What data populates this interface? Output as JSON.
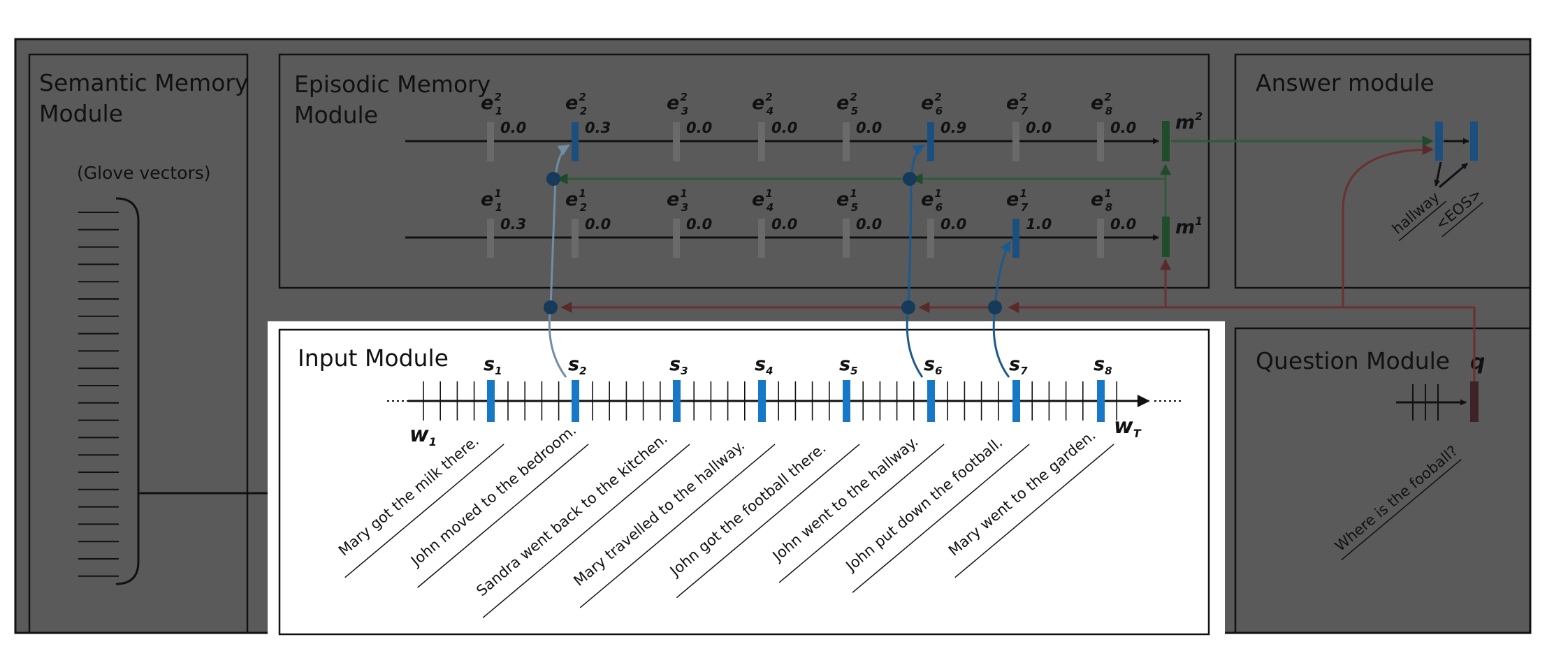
{
  "modules": {
    "semantic": {
      "title_line1": "Semantic Memory",
      "title_line2": "Module",
      "subtitle": "(Glove vectors)"
    },
    "episodic": {
      "title_line1": "Episodic Memory",
      "title_line2": "Module"
    },
    "answer": {
      "title": "Answer module",
      "outputs": [
        "hallway",
        "<EOS>"
      ]
    },
    "question": {
      "title": "Question Module",
      "q_label": "q",
      "question_text": "Where is the fooball?"
    },
    "input": {
      "title": "Input Module",
      "w_first": "w",
      "w_first_sub": "1",
      "w_last": "w",
      "w_last_sub": "T"
    }
  },
  "episodic": {
    "pass2": {
      "memory_label": "m",
      "memory_sup": "2",
      "gates": [
        {
          "sub": "1",
          "sup": "2",
          "value": "0.0",
          "attended": false
        },
        {
          "sub": "2",
          "sup": "2",
          "value": "0.3",
          "attended": true
        },
        {
          "sub": "3",
          "sup": "2",
          "value": "0.0",
          "attended": false
        },
        {
          "sub": "4",
          "sup": "2",
          "value": "0.0",
          "attended": false
        },
        {
          "sub": "5",
          "sup": "2",
          "value": "0.0",
          "attended": false
        },
        {
          "sub": "6",
          "sup": "2",
          "value": "0.9",
          "attended": true
        },
        {
          "sub": "7",
          "sup": "2",
          "value": "0.0",
          "attended": false
        },
        {
          "sub": "8",
          "sup": "2",
          "value": "0.0",
          "attended": false
        }
      ]
    },
    "pass1": {
      "memory_label": "m",
      "memory_sup": "1",
      "gates": [
        {
          "sub": "1",
          "sup": "1",
          "value": "0.3",
          "attended": false
        },
        {
          "sub": "2",
          "sup": "1",
          "value": "0.0",
          "attended": false
        },
        {
          "sub": "3",
          "sup": "1",
          "value": "0.0",
          "attended": false
        },
        {
          "sub": "4",
          "sup": "1",
          "value": "0.0",
          "attended": false
        },
        {
          "sub": "5",
          "sup": "1",
          "value": "0.0",
          "attended": false
        },
        {
          "sub": "6",
          "sup": "1",
          "value": "0.0",
          "attended": false
        },
        {
          "sub": "7",
          "sup": "1",
          "value": "1.0",
          "attended": true
        },
        {
          "sub": "8",
          "sup": "1",
          "value": "0.0",
          "attended": false
        }
      ]
    }
  },
  "input": {
    "sentences": [
      {
        "label": "s",
        "sub": "1",
        "text": "Mary got the milk there."
      },
      {
        "label": "s",
        "sub": "2",
        "text": "John moved to the bedroom."
      },
      {
        "label": "s",
        "sub": "3",
        "text": "Sandra went back to the kitchen."
      },
      {
        "label": "s",
        "sub": "4",
        "text": "Mary travelled to the hallway."
      },
      {
        "label": "s",
        "sub": "5",
        "text": "John got the football there."
      },
      {
        "label": "s",
        "sub": "6",
        "text": "John went to the hallway."
      },
      {
        "label": "s",
        "sub": "7",
        "text": "John put down the football."
      },
      {
        "label": "s",
        "sub": "8",
        "text": "Mary went to the garden."
      }
    ]
  },
  "colors": {
    "attended_blue": "#1b4f80",
    "input_blue": "#1678c6",
    "memory_green": "#1f4d2a",
    "question_maroon": "#3d2326",
    "link_green": "#2e5a3a",
    "link_maroon": "#6b3030",
    "link_steel": "#6f8ea6",
    "node_navy": "#163a5a"
  }
}
